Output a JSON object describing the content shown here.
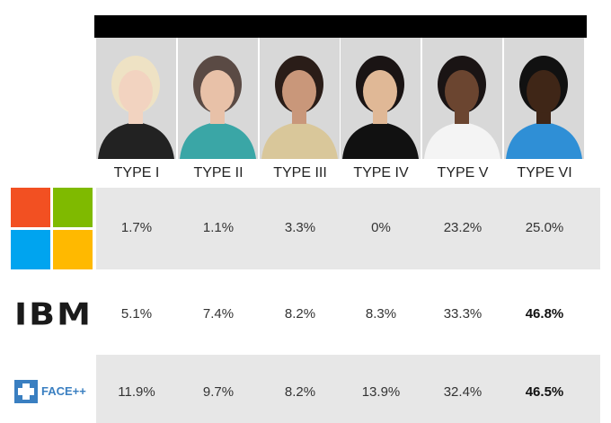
{
  "header": {
    "columns": [
      "TYPE I",
      "TYPE II",
      "TYPE III",
      "TYPE IV",
      "TYPE V",
      "TYPE VI"
    ]
  },
  "table": {
    "rows": [
      {
        "cells": [
          "1.7%",
          "1.1%",
          "3.3%",
          "0%",
          "23.2%",
          "25.0%"
        ]
      },
      {
        "logo": "IBM",
        "cells": [
          "5.1%",
          "7.4%",
          "8.2%",
          "8.3%",
          "33.3%",
          "46.8%"
        ]
      },
      {
        "logo": "FACE++",
        "cells": [
          "11.9%",
          "9.7%",
          "8.2%",
          "13.9%",
          "32.4%",
          "46.5%"
        ]
      }
    ]
  }
}
